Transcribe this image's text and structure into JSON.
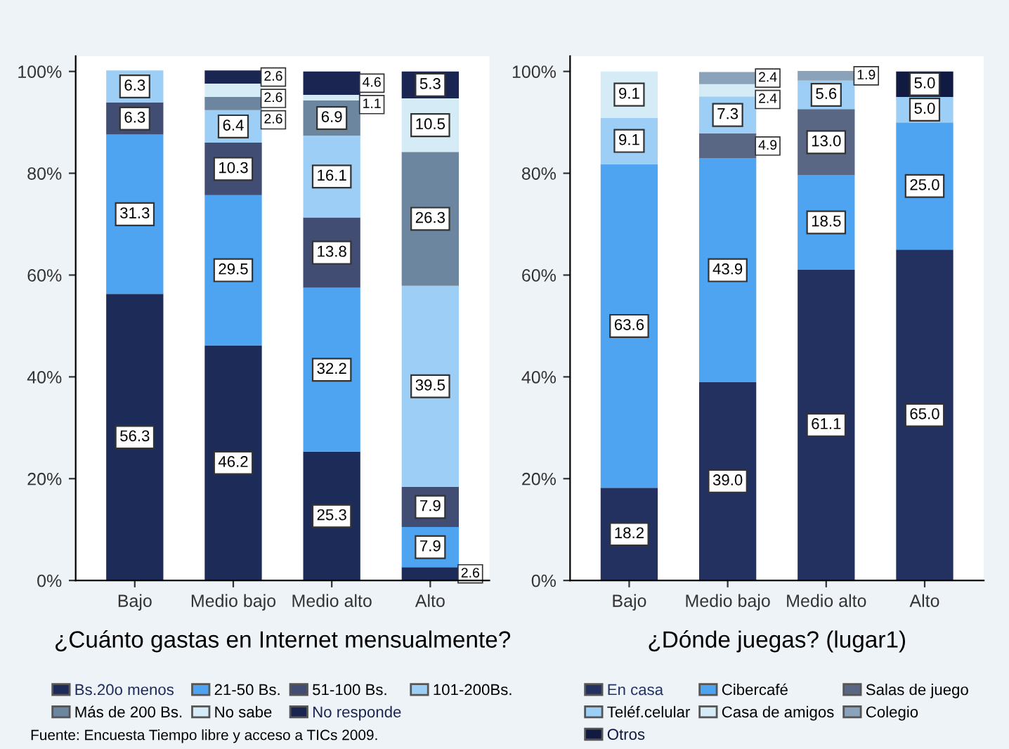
{
  "chart_data": [
    {
      "type": "bar",
      "stacked": true,
      "title": "¿Cuánto gastas en Internet mensualmente?",
      "categories": [
        "Bajo",
        "Medio bajo",
        "Medio alto",
        "Alto"
      ],
      "series": [
        {
          "name": "Bs.20o menos",
          "color": "#1c2b58",
          "values": [
            56.3,
            46.2,
            25.3,
            2.6
          ]
        },
        {
          "name": "21-50 Bs.",
          "color": "#4ea4f0",
          "values": [
            31.3,
            29.5,
            32.2,
            7.9
          ]
        },
        {
          "name": "51-100 Bs.",
          "color": "#414d73",
          "values": [
            6.3,
            10.3,
            13.8,
            7.9
          ]
        },
        {
          "name": "101-200Bs.",
          "color": "#9dcff6",
          "values": [
            6.3,
            6.4,
            16.1,
            39.5
          ]
        },
        {
          "name": "Más de 200 Bs.",
          "color": "#6c86a0",
          "values": [
            null,
            2.6,
            6.9,
            26.3
          ]
        },
        {
          "name": "No sabe",
          "color": "#d5ebf6",
          "values": [
            null,
            2.6,
            1.1,
            10.5
          ]
        },
        {
          "name": "No responde",
          "color": "#1a2552",
          "values": [
            null,
            2.6,
            4.6,
            5.3
          ]
        }
      ],
      "ylim": [
        0,
        103
      ],
      "yticks": [
        {
          "value": 0,
          "label": "0%"
        },
        {
          "value": 20,
          "label": "20%"
        },
        {
          "value": 40,
          "label": "40%"
        },
        {
          "value": 60,
          "label": "60%"
        },
        {
          "value": 80,
          "label": "80%"
        },
        {
          "value": 100,
          "label": "100%"
        }
      ],
      "data_labels": true,
      "legend": "bottom",
      "annotations": [
        "Fuente: Encuesta Tiempo libre y acceso a TICs 2009."
      ]
    },
    {
      "type": "bar",
      "stacked": true,
      "title": "¿Dónde juegas? (lugar1)",
      "categories": [
        "Bajo",
        "Medio bajo",
        "Medio alto",
        "Alto"
      ],
      "series": [
        {
          "name": "En casa",
          "color": "#22315f",
          "values": [
            18.2,
            39.0,
            61.1,
            65.0
          ],
          "value_labels": [
            "18.2",
            "39.0",
            "61.1",
            "65.0"
          ]
        },
        {
          "name": "Cibercafé",
          "color": "#4ea4f0",
          "values": [
            63.6,
            43.9,
            18.5,
            25.0
          ],
          "value_labels": [
            "63.6",
            "43.9",
            "18.5",
            "25.0"
          ]
        },
        {
          "name": "Salas de juego",
          "color": "#5a6784",
          "values": [
            null,
            4.9,
            13.0,
            null
          ],
          "value_labels": [
            null,
            "4.9",
            "13.0",
            null
          ]
        },
        {
          "name": "Teléf.celular",
          "color": "#9dcff6",
          "values": [
            9.1,
            7.3,
            5.6,
            5.0
          ],
          "value_labels": [
            "9.1",
            "7.3",
            "5.6",
            "5.0"
          ]
        },
        {
          "name": "Casa de amigos",
          "color": "#d5ebf6",
          "values": [
            9.1,
            2.4,
            null,
            null
          ],
          "value_labels": [
            "9.1",
            "2.4",
            null,
            null
          ]
        },
        {
          "name": "Colegio",
          "color": "#8aa3bb",
          "values": [
            null,
            2.4,
            1.9,
            null
          ],
          "value_labels": [
            null,
            "2.4",
            "1.9",
            null
          ]
        },
        {
          "name": "Otros",
          "color": "#111a40",
          "values": [
            null,
            null,
            null,
            5.0
          ],
          "value_labels": [
            null,
            null,
            null,
            "5.0"
          ]
        }
      ],
      "ylim": [
        0,
        103
      ],
      "yticks": [
        {
          "value": 0,
          "label": "0%"
        },
        {
          "value": 20,
          "label": "20%"
        },
        {
          "value": 40,
          "label": "40%"
        },
        {
          "value": 60,
          "label": "60%"
        },
        {
          "value": 80,
          "label": "80%"
        },
        {
          "value": 100,
          "label": "100%"
        }
      ],
      "legend": "bottom"
    }
  ]
}
